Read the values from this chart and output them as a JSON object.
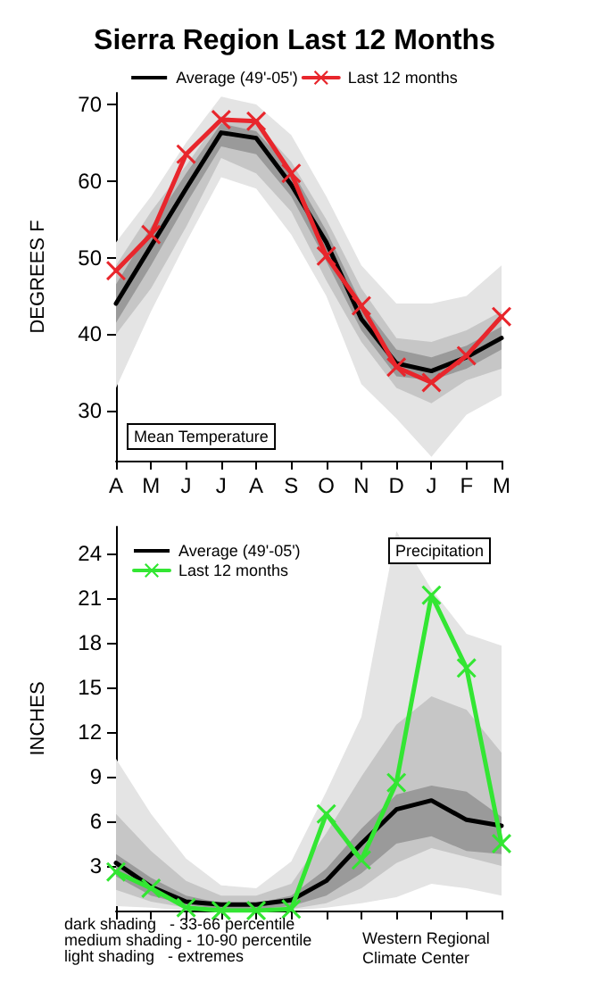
{
  "chart_data": [
    {
      "type": "line",
      "title": "Sierra Region Last 12 Months",
      "ylabel": "DEGREES F",
      "categories": [
        "A",
        "M",
        "J",
        "J",
        "A",
        "S",
        "O",
        "N",
        "D",
        "J",
        "F",
        "M"
      ],
      "ylim": [
        23.5,
        71.5
      ],
      "yticks": [
        30,
        40,
        50,
        60,
        70
      ],
      "grid": false,
      "legend": "top",
      "annotations": [
        "Mean Temperature"
      ],
      "series": [
        {
          "type": "area",
          "color": "#e4e4e4",
          "values": [
            null,
            null,
            null,
            null,
            null,
            null,
            null,
            null,
            null,
            null,
            null,
            null
          ],
          "lower": [
            33,
            43,
            52,
            60.5,
            59,
            53,
            45,
            33.5,
            29,
            24,
            29.5,
            32
          ],
          "upper": [
            52,
            58,
            65,
            71,
            70,
            66,
            58,
            49,
            44,
            44,
            45,
            49
          ]
        },
        {
          "type": "area",
          "color": "#c6c6c6",
          "values": [
            null,
            null,
            null,
            null,
            null,
            null,
            null,
            null,
            null,
            null,
            null,
            null
          ],
          "lower": [
            40,
            46,
            54,
            63,
            61,
            56,
            47,
            39,
            33,
            31,
            34,
            35.5
          ],
          "upper": [
            49,
            56,
            62,
            68.5,
            67.5,
            62.5,
            55,
            46,
            39.5,
            39,
            40.5,
            43
          ]
        },
        {
          "type": "area",
          "color": "#9a9a9a",
          "values": [
            null,
            null,
            null,
            null,
            null,
            null,
            null,
            null,
            null,
            null,
            null,
            null
          ],
          "lower": [
            41.5,
            49,
            57,
            64.5,
            63.5,
            58,
            49.5,
            40.5,
            34.5,
            34,
            35.5,
            38
          ],
          "upper": [
            46.5,
            54,
            61,
            67.5,
            66.5,
            61.5,
            53.5,
            44,
            38,
            37,
            38.5,
            41
          ]
        },
        {
          "name": "Average (49'-05')",
          "color": "#000000",
          "marker": "none",
          "values": [
            44,
            51.5,
            59,
            66.3,
            65.6,
            59.5,
            52,
            42,
            36.2,
            35.2,
            37,
            39.5
          ]
        },
        {
          "name": "Last 12 months",
          "color": "#e8262c",
          "marker": "cross",
          "values": [
            48.3,
            53,
            63.5,
            68,
            67.8,
            61,
            50.2,
            43.7,
            35.7,
            33.7,
            37.2,
            42.3
          ]
        }
      ]
    },
    {
      "type": "line",
      "ylabel": "INCHES",
      "tick_labels": "y",
      "categories": [
        "A",
        "M",
        "J",
        "J",
        "A",
        "S",
        "O",
        "N",
        "D",
        "J",
        "F",
        "M"
      ],
      "ylim": [
        0,
        25.8
      ],
      "yticks": [
        3,
        6,
        9,
        12,
        15,
        18,
        21,
        24
      ],
      "grid": false,
      "legend": "top left",
      "annotations": [
        "Precipitation",
        "dark shading   - 33-66 percentile",
        "medium shading - 10-90 percentile",
        "light shading   - extremes",
        "Western Regional Climate Center"
      ],
      "series": [
        {
          "type": "area",
          "color": "#e4e4e4",
          "values": [
            null,
            null,
            null,
            null,
            null,
            null,
            null,
            null,
            null,
            null,
            null,
            null
          ],
          "lower": [
            0.3,
            0.2,
            0,
            0,
            0,
            0,
            0.2,
            0.5,
            0.9,
            1.8,
            1.5,
            1.0
          ],
          "upper": [
            10.2,
            6.5,
            3.5,
            1.7,
            1.5,
            3.3,
            8,
            13,
            25.5,
            21.6,
            18.6,
            17.8
          ]
        },
        {
          "type": "area",
          "color": "#c6c6c6",
          "values": [
            null,
            null,
            null,
            null,
            null,
            null,
            null,
            null,
            null,
            null,
            null,
            null
          ],
          "lower": [
            1.4,
            0.6,
            0.2,
            0,
            0,
            0.1,
            0.5,
            1.5,
            3.2,
            4.2,
            3.6,
            3.0
          ],
          "upper": [
            6.5,
            4,
            2,
            1,
            1,
            1.8,
            5.2,
            9,
            12.5,
            14.4,
            13.5,
            10.6
          ]
        },
        {
          "type": "area",
          "color": "#9a9a9a",
          "values": [
            null,
            null,
            null,
            null,
            null,
            null,
            null,
            null,
            null,
            null,
            null,
            null
          ],
          "lower": [
            2.3,
            1.0,
            0.4,
            0.1,
            0.1,
            0.3,
            1.0,
            2.5,
            4.5,
            5.0,
            4.0,
            3.8
          ],
          "upper": [
            3.8,
            2.2,
            1.0,
            0.5,
            0.5,
            1.0,
            2.8,
            5.5,
            7.8,
            8.4,
            8.0,
            6.3
          ]
        },
        {
          "name": "Average (49'-05')",
          "color": "#000000",
          "marker": "none",
          "values": [
            3.2,
            1.6,
            0.6,
            0.4,
            0.4,
            0.7,
            2.0,
            4.5,
            6.8,
            7.4,
            6.1,
            5.7
          ]
        },
        {
          "name": "Last 12 months",
          "color": "#33e633",
          "marker": "cross",
          "values": [
            2.6,
            1.5,
            0.2,
            0,
            0,
            0.1,
            6.5,
            3.4,
            8.6,
            21.2,
            16.3,
            4.5
          ]
        }
      ]
    }
  ]
}
